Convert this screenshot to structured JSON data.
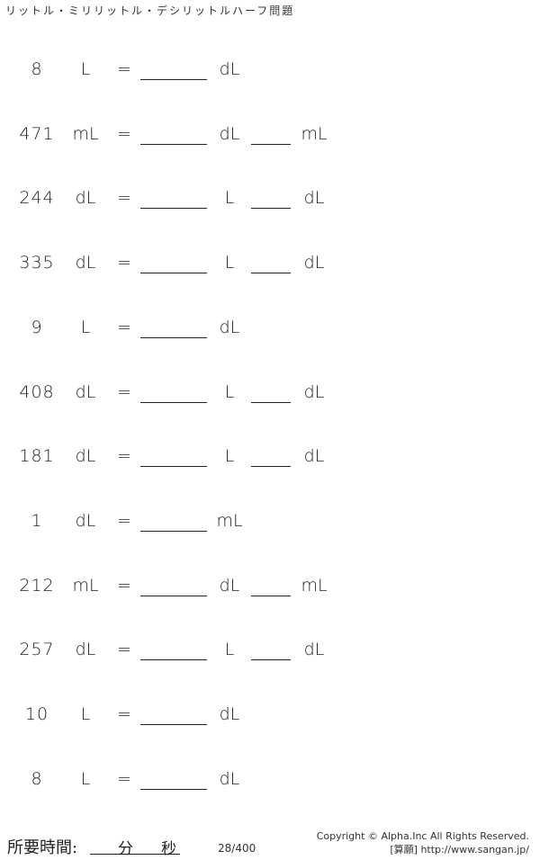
{
  "title": "リットル・ミリリットル・デシリットルハーフ問題",
  "problems": [
    {
      "value": "8",
      "unit": "L",
      "answer_unit1": "dL",
      "answer_unit2": ""
    },
    {
      "value": "471",
      "unit": "mL",
      "answer_unit1": "dL",
      "answer_unit2": "mL"
    },
    {
      "value": "244",
      "unit": "dL",
      "answer_unit1": "L",
      "answer_unit2": "dL"
    },
    {
      "value": "335",
      "unit": "dL",
      "answer_unit1": "L",
      "answer_unit2": "dL"
    },
    {
      "value": "9",
      "unit": "L",
      "answer_unit1": "dL",
      "answer_unit2": ""
    },
    {
      "value": "408",
      "unit": "dL",
      "answer_unit1": "L",
      "answer_unit2": "dL"
    },
    {
      "value": "181",
      "unit": "dL",
      "answer_unit1": "L",
      "answer_unit2": "dL"
    },
    {
      "value": "1",
      "unit": "dL",
      "answer_unit1": "mL",
      "answer_unit2": ""
    },
    {
      "value": "212",
      "unit": "mL",
      "answer_unit1": "dL",
      "answer_unit2": "mL"
    },
    {
      "value": "257",
      "unit": "dL",
      "answer_unit1": "L",
      "answer_unit2": "dL"
    },
    {
      "value": "10",
      "unit": "L",
      "answer_unit1": "dL",
      "answer_unit2": ""
    },
    {
      "value": "8",
      "unit": "L",
      "answer_unit1": "dL",
      "answer_unit2": ""
    }
  ],
  "equals": "=",
  "footer": {
    "time_label": "所要時間:",
    "minutes": "分",
    "seconds": "秒",
    "page": "28/400",
    "copyright": "Copyright © Alpha.Inc All Rights Reserved.",
    "site": "[算願] http://www.sangan.jp/"
  }
}
